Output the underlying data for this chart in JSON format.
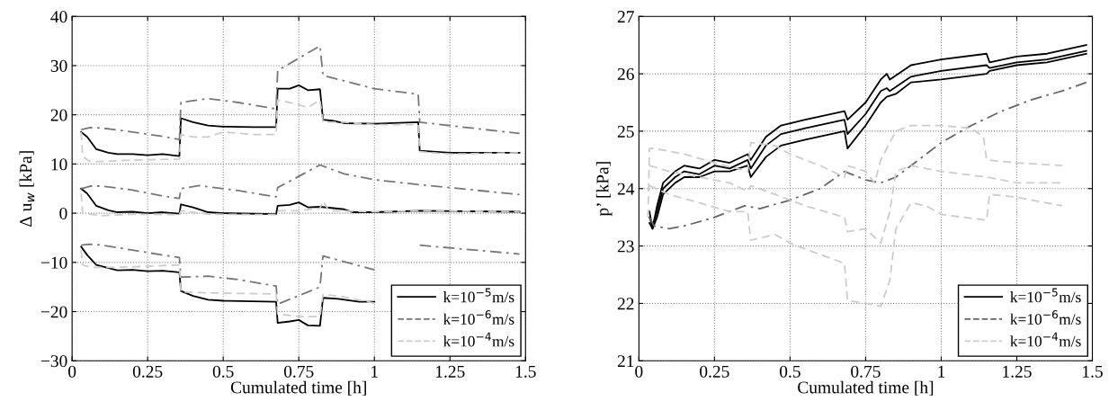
{
  "chart_data": [
    {
      "type": "line",
      "xlabel": "Cumulated time [h]",
      "ylabel": "Δ u$_{w}$ [kPa]",
      "xlim": [
        0,
        1.5
      ],
      "ylim": [
        -30,
        40
      ],
      "xticks": [
        0,
        0.25,
        0.5,
        0.75,
        1,
        1.25,
        1.5
      ],
      "yticks": [
        -30,
        -20,
        -10,
        0,
        10,
        20,
        30,
        40
      ],
      "grid": true,
      "legend": "bottom right",
      "series": [
        {
          "name": "k=10$^{−5}$m/s",
          "color": "#000000",
          "line_style": "solid",
          "x": [
            0.03,
            0.05,
            0.08,
            0.12,
            0.15,
            0.2,
            0.25,
            0.3,
            0.355,
            0.36,
            0.4,
            0.45,
            0.5,
            0.6,
            0.675,
            0.68,
            0.72,
            0.75,
            0.78,
            0.82,
            0.83,
            0.86,
            0.9,
            1.0,
            1.145,
            1.15,
            1.25,
            1.48
          ],
          "values": [
            16.5,
            15.5,
            13,
            12.3,
            12,
            12,
            11.8,
            12,
            11.6,
            19.3,
            18.5,
            17.8,
            17.6,
            17.5,
            17.5,
            25.3,
            25.3,
            26,
            25,
            25.2,
            19,
            18.8,
            18.3,
            18.2,
            18.5,
            12.7,
            12.3,
            12.3
          ]
        },
        {
          "color": "#000000",
          "line_style": "solid",
          "x": [
            0.03,
            0.05,
            0.08,
            0.12,
            0.15,
            0.2,
            0.25,
            0.3,
            0.355,
            0.36,
            0.4,
            0.45,
            0.5,
            0.675,
            0.68,
            0.72,
            0.75,
            0.78,
            0.82,
            0.9,
            0.93,
            1.0,
            1.15,
            1.48
          ],
          "values": [
            5,
            4,
            1.5,
            0.6,
            0.2,
            0.3,
            0,
            0.2,
            -0.1,
            1.8,
            1.2,
            0.2,
            0,
            -0.2,
            1.5,
            1.7,
            2.2,
            1.2,
            1.3,
            0.8,
            0.2,
            0.2,
            0.5,
            0.3
          ]
        },
        {
          "color": "#000000",
          "line_style": "solid",
          "x": [
            0.03,
            0.05,
            0.08,
            0.15,
            0.2,
            0.25,
            0.3,
            0.355,
            0.36,
            0.4,
            0.45,
            0.5,
            0.675,
            0.68,
            0.72,
            0.75,
            0.78,
            0.82,
            0.83,
            0.88,
            0.95,
            1.0
          ],
          "values": [
            -6.8,
            -8.5,
            -10.5,
            -11.6,
            -11.5,
            -11.8,
            -11.7,
            -12,
            -15.8,
            -16.8,
            -17.6,
            -17.8,
            -18,
            -22.3,
            -22,
            -21.7,
            -22.8,
            -22.9,
            -17.2,
            -17.4,
            -18,
            -18
          ]
        },
        {
          "name": "k=10$^{−6}$m/s",
          "color": "#777777",
          "line_style": "dashdot",
          "x": [
            0.03,
            0.06,
            0.1,
            0.2,
            0.3,
            0.355,
            0.36,
            0.45,
            0.55,
            0.675,
            0.68,
            0.82,
            0.83,
            1.0,
            1.145,
            1.15,
            1.48
          ],
          "values": [
            17,
            17.4,
            17.3,
            16.5,
            15.6,
            15,
            22.5,
            23.3,
            22.5,
            21.2,
            29,
            34,
            28,
            25.3,
            24.2,
            18.5,
            16.2
          ]
        },
        {
          "color": "#777777",
          "line_style": "dashdot",
          "x": [
            0.03,
            0.06,
            0.1,
            0.2,
            0.3,
            0.355,
            0.36,
            0.42,
            0.55,
            0.675,
            0.68,
            0.82,
            0.9,
            1.0,
            1.15,
            1.48
          ],
          "values": [
            5,
            5.5,
            5.5,
            4.7,
            3.5,
            3,
            5,
            5.6,
            4.6,
            3.3,
            5.2,
            9.8,
            8,
            6.8,
            5.8,
            3.8
          ]
        },
        {
          "color": "#777777",
          "line_style": "dashdot",
          "x": [
            0.03,
            0.06,
            0.1,
            0.2,
            0.3,
            0.355,
            0.36,
            0.45,
            0.55,
            0.675,
            0.68,
            0.82,
            0.83,
            1.0,
            1.1,
            1.15,
            1.48
          ],
          "values": [
            -6.5,
            -6.3,
            -6.5,
            -7.5,
            -8.5,
            -9,
            -13,
            -12.8,
            -13.5,
            -14.8,
            -18.5,
            -15,
            -8.7,
            -11.5,
            null,
            -6.5,
            -8.3
          ]
        },
        {
          "name": "k=10$^{−4}$m/s",
          "color": "#cccccc",
          "line_style": "dashed",
          "x": [
            0.03,
            0.035,
            0.06,
            0.1,
            0.2,
            0.355,
            0.36,
            0.4,
            0.45,
            0.5,
            0.6,
            0.675,
            0.68,
            0.72,
            0.78,
            0.82,
            0.83,
            0.9,
            1.0,
            1.145,
            1.15,
            1.25,
            1.48
          ],
          "values": [
            16.5,
            11.5,
            10.5,
            10.5,
            10.8,
            11,
            16,
            15.5,
            15.5,
            16.5,
            16,
            16,
            23,
            22.5,
            21.5,
            23,
            18.5,
            18.5,
            18,
            18,
            12.5,
            12,
            12.3
          ]
        },
        {
          "color": "#cccccc",
          "line_style": "dashed",
          "x": [
            0.03,
            0.035,
            0.1,
            0.2,
            0.355,
            0.36,
            0.45,
            0.675,
            0.68,
            0.75,
            0.82,
            0.83,
            0.85,
            1.0,
            1.15,
            1.48
          ],
          "values": [
            4,
            0,
            -0.5,
            -0.2,
            -0.3,
            0.5,
            -0.2,
            -0.3,
            0.5,
            0.5,
            1,
            2.5,
            0.5,
            0.3,
            0.5,
            0.3
          ]
        },
        {
          "color": "#cccccc",
          "line_style": "dashed",
          "x": [
            0.03,
            0.035,
            0.06,
            0.15,
            0.25,
            0.355,
            0.36,
            0.45,
            0.55,
            0.675,
            0.68,
            0.75,
            0.82,
            0.83,
            0.9,
            1.0
          ],
          "values": [
            -7.5,
            -10.5,
            -11,
            -11,
            -10.8,
            -10.5,
            -16,
            -16.2,
            -16.3,
            -16.4,
            -20.5,
            -21,
            -21,
            -16.5,
            -17,
            -18.3
          ]
        }
      ]
    },
    {
      "type": "line",
      "xlabel": "Cumulated time [h]",
      "ylabel": "p’ [kPa]",
      "xlim": [
        0,
        1.5
      ],
      "ylim": [
        21,
        27
      ],
      "xticks": [
        0,
        0.25,
        0.5,
        0.75,
        1,
        1.25,
        1.5
      ],
      "yticks": [
        21,
        22,
        23,
        24,
        25,
        26,
        27
      ],
      "grid": true,
      "legend": "bottom right",
      "series": [
        {
          "name": "k=10$^{−5}$m/s",
          "color": "#000000",
          "line_style": "solid",
          "x": [
            0.035,
            0.045,
            0.06,
            0.08,
            0.12,
            0.15,
            0.2,
            0.25,
            0.3,
            0.36,
            0.37,
            0.42,
            0.47,
            0.55,
            0.68,
            0.69,
            0.75,
            0.8,
            0.82,
            0.83,
            0.9,
            1.0,
            1.15,
            1.16,
            1.25,
            1.35,
            1.48
          ],
          "values": [
            23.6,
            23.3,
            23.7,
            24.1,
            24.3,
            24.4,
            24.35,
            24.5,
            24.45,
            24.6,
            24.5,
            24.9,
            25.1,
            25.2,
            25.35,
            25.2,
            25.5,
            25.9,
            26,
            25.9,
            26.15,
            26.25,
            26.35,
            26.2,
            26.3,
            26.35,
            26.5
          ]
        },
        {
          "color": "#000000",
          "line_style": "solid",
          "x": [
            0.035,
            0.045,
            0.06,
            0.08,
            0.12,
            0.15,
            0.2,
            0.25,
            0.3,
            0.36,
            0.37,
            0.42,
            0.47,
            0.55,
            0.68,
            0.69,
            0.75,
            0.8,
            0.82,
            0.83,
            0.9,
            1.0,
            1.15,
            1.16,
            1.25,
            1.35,
            1.48
          ],
          "values": [
            23.5,
            23.35,
            23.6,
            24,
            24.2,
            24.3,
            24.25,
            24.4,
            24.35,
            24.5,
            24.35,
            24.75,
            24.95,
            25.05,
            25.2,
            24.95,
            25.3,
            25.7,
            25.75,
            25.7,
            25.95,
            26.05,
            26.15,
            26.1,
            26.2,
            26.25,
            26.4
          ]
        },
        {
          "color": "#000000",
          "line_style": "solid",
          "x": [
            0.035,
            0.045,
            0.06,
            0.08,
            0.12,
            0.15,
            0.2,
            0.25,
            0.3,
            0.36,
            0.37,
            0.42,
            0.47,
            0.55,
            0.68,
            0.69,
            0.75,
            0.8,
            0.82,
            0.85,
            0.9,
            1.0,
            1.15,
            1.16,
            1.25,
            1.35,
            1.48
          ],
          "values": [
            23.4,
            23.3,
            23.5,
            23.9,
            24.1,
            24.2,
            24.2,
            24.3,
            24.3,
            24.4,
            24.2,
            24.55,
            24.75,
            24.85,
            25,
            24.7,
            25.1,
            25.5,
            25.6,
            25.65,
            25.85,
            25.9,
            26,
            26.05,
            26.15,
            26.2,
            26.35
          ]
        },
        {
          "name": "k=10$^{−6}$m/s",
          "color": "#666666",
          "line_style": "dashdot",
          "x": [
            0.035,
            0.05,
            0.1,
            0.15,
            0.25,
            0.35,
            0.4,
            0.5,
            0.6,
            0.68,
            0.75,
            0.8,
            0.85,
            0.9,
            1.0,
            1.1,
            1.2,
            1.3,
            1.4,
            1.48
          ],
          "values": [
            23.5,
            23.35,
            23.3,
            23.35,
            23.5,
            23.7,
            23.65,
            23.8,
            24,
            24.3,
            24.15,
            24.1,
            24.2,
            24.4,
            24.8,
            25.1,
            25.35,
            25.55,
            25.7,
            25.85
          ]
        },
        {
          "name": "k=10$^{−4}$m/s",
          "color": "#cccccc",
          "line_style": "dashed",
          "x": [
            0.03,
            0.035,
            0.05,
            0.15,
            0.25,
            0.36,
            0.37,
            0.45,
            0.5,
            0.6,
            0.68,
            0.69,
            0.75,
            0.78,
            0.8,
            0.83,
            0.85,
            0.9,
            1.0,
            1.1,
            1.14,
            1.15,
            1.25,
            1.4
          ],
          "values": [
            23.5,
            24.7,
            24.7,
            24.6,
            24.45,
            24.3,
            24.8,
            24.75,
            24.6,
            24.4,
            24.2,
            24.4,
            24.3,
            24.1,
            24.5,
            24.8,
            25,
            25.1,
            25.1,
            25.05,
            24.9,
            24.5,
            24.45,
            24.4
          ]
        },
        {
          "color": "#cccccc",
          "line_style": "dashed",
          "x": [
            0.035,
            0.1,
            0.2,
            0.3,
            0.36,
            0.37,
            0.45,
            0.55,
            0.68,
            0.69,
            0.75,
            0.8,
            0.83,
            0.85,
            0.9,
            1.0,
            1.15,
            1.25,
            1.4
          ],
          "values": [
            24.4,
            24.3,
            24.2,
            24.1,
            23.95,
            24.05,
            23.9,
            23.7,
            23.5,
            23.25,
            23.3,
            23.05,
            23.6,
            24.3,
            24.4,
            24.3,
            24.2,
            24.1,
            24.1
          ]
        },
        {
          "color": "#cccccc",
          "line_style": "dashed",
          "x": [
            0.035,
            0.1,
            0.2,
            0.3,
            0.36,
            0.37,
            0.45,
            0.5,
            0.6,
            0.68,
            0.69,
            0.75,
            0.8,
            0.83,
            0.85,
            0.9,
            0.95,
            1.0,
            1.15,
            1.16,
            1.25,
            1.4
          ],
          "values": [
            24.05,
            23.9,
            23.75,
            23.6,
            23.6,
            23.1,
            23.2,
            23.05,
            22.85,
            22.7,
            22.05,
            22,
            21.95,
            22.4,
            23.3,
            23.75,
            23.7,
            23.55,
            23.45,
            23.9,
            23.85,
            23.7
          ]
        }
      ]
    }
  ]
}
